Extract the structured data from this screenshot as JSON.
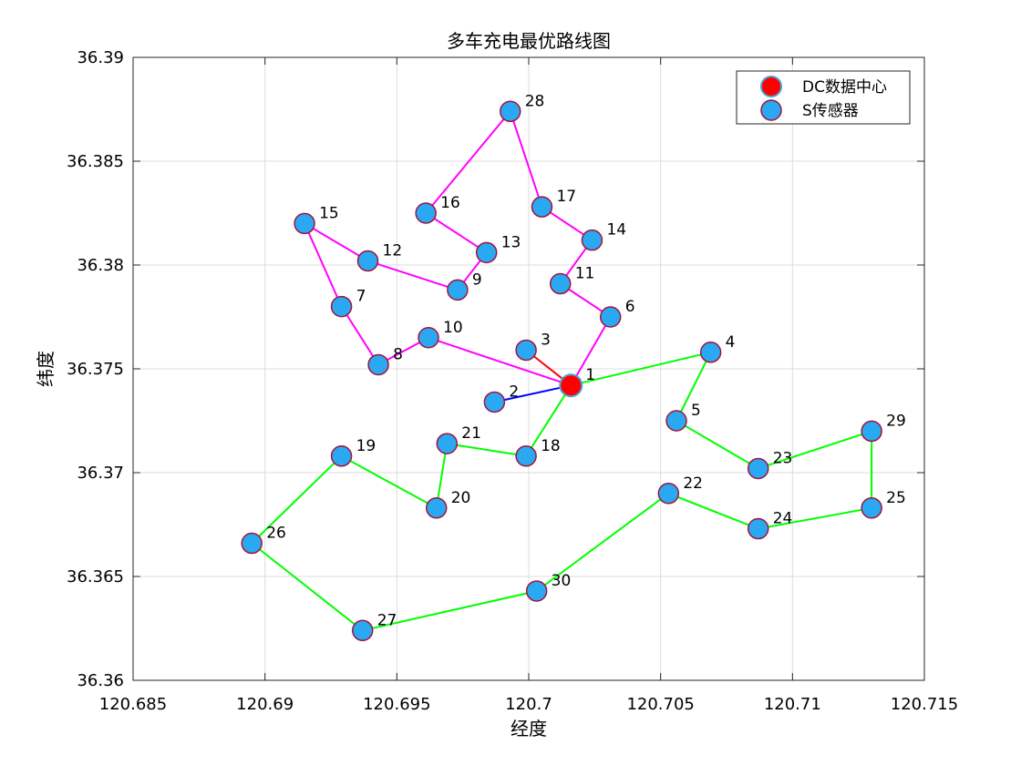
{
  "chart_data": {
    "type": "scatter",
    "title": "多车充电最优路线图",
    "xlabel": "经度",
    "ylabel": "纬度",
    "xlim": [
      120.685,
      120.715
    ],
    "ylim": [
      36.36,
      36.39
    ],
    "xticks": [
      120.685,
      120.69,
      120.695,
      120.7,
      120.705,
      120.71,
      120.715
    ],
    "xtick_labels": [
      "120.685",
      "120.69",
      "120.695",
      "120.7",
      "120.705",
      "120.71",
      "120.715"
    ],
    "yticks": [
      36.36,
      36.365,
      36.37,
      36.375,
      36.38,
      36.385,
      36.39
    ],
    "ytick_labels": [
      "36.36",
      "36.365",
      "36.37",
      "36.375",
      "36.38",
      "36.385",
      "36.39"
    ],
    "grid": true,
    "legend_position": "top-right",
    "legend": [
      {
        "label": "DC数据中心",
        "color": "#ff0000"
      },
      {
        "label": "S传感器",
        "color": "#2aa8f2"
      }
    ],
    "points": [
      {
        "id": "1",
        "x": 120.7016,
        "y": 36.3742,
        "type": "DC"
      },
      {
        "id": "2",
        "x": 120.6987,
        "y": 36.3734,
        "type": "S"
      },
      {
        "id": "3",
        "x": 120.6999,
        "y": 36.3759,
        "type": "S"
      },
      {
        "id": "4",
        "x": 120.7069,
        "y": 36.3758,
        "type": "S"
      },
      {
        "id": "5",
        "x": 120.7056,
        "y": 36.3725,
        "type": "S"
      },
      {
        "id": "6",
        "x": 120.7031,
        "y": 36.3775,
        "type": "S"
      },
      {
        "id": "7",
        "x": 120.6929,
        "y": 36.378,
        "type": "S"
      },
      {
        "id": "8",
        "x": 120.6943,
        "y": 36.3752,
        "type": "S"
      },
      {
        "id": "9",
        "x": 120.6973,
        "y": 36.3788,
        "type": "S"
      },
      {
        "id": "10",
        "x": 120.6962,
        "y": 36.3765,
        "type": "S"
      },
      {
        "id": "11",
        "x": 120.7012,
        "y": 36.3791,
        "type": "S"
      },
      {
        "id": "12",
        "x": 120.6939,
        "y": 36.3802,
        "type": "S"
      },
      {
        "id": "13",
        "x": 120.6984,
        "y": 36.3806,
        "type": "S"
      },
      {
        "id": "14",
        "x": 120.7024,
        "y": 36.3812,
        "type": "S"
      },
      {
        "id": "15",
        "x": 120.6915,
        "y": 36.382,
        "type": "S"
      },
      {
        "id": "16",
        "x": 120.6961,
        "y": 36.3825,
        "type": "S"
      },
      {
        "id": "17",
        "x": 120.7005,
        "y": 36.3828,
        "type": "S"
      },
      {
        "id": "18",
        "x": 120.6999,
        "y": 36.3708,
        "type": "S"
      },
      {
        "id": "19",
        "x": 120.6929,
        "y": 36.3708,
        "type": "S"
      },
      {
        "id": "20",
        "x": 120.6965,
        "y": 36.3683,
        "type": "S"
      },
      {
        "id": "21",
        "x": 120.6969,
        "y": 36.3714,
        "type": "S"
      },
      {
        "id": "22",
        "x": 120.7053,
        "y": 36.369,
        "type": "S"
      },
      {
        "id": "23",
        "x": 120.7087,
        "y": 36.3702,
        "type": "S"
      },
      {
        "id": "24",
        "x": 120.7087,
        "y": 36.3673,
        "type": "S"
      },
      {
        "id": "25",
        "x": 120.713,
        "y": 36.3683,
        "type": "S"
      },
      {
        "id": "26",
        "x": 120.6895,
        "y": 36.3666,
        "type": "S"
      },
      {
        "id": "27",
        "x": 120.6937,
        "y": 36.3624,
        "type": "S"
      },
      {
        "id": "28",
        "x": 120.6993,
        "y": 36.3874,
        "type": "S"
      },
      {
        "id": "29",
        "x": 120.713,
        "y": 36.372,
        "type": "S"
      },
      {
        "id": "30",
        "x": 120.7003,
        "y": 36.3643,
        "type": "S"
      }
    ],
    "routes": [
      {
        "color": "#ff0000",
        "nodes": [
          "1",
          "3"
        ]
      },
      {
        "color": "#0000ff",
        "nodes": [
          "1",
          "2"
        ]
      },
      {
        "color": "#ff00ff",
        "nodes": [
          "1",
          "6",
          "11",
          "14",
          "17",
          "28",
          "16",
          "13",
          "9",
          "12",
          "15",
          "7",
          "8",
          "10",
          "1"
        ]
      },
      {
        "color": "#00ff00",
        "nodes": [
          "1",
          "4",
          "5",
          "23",
          "29",
          "25",
          "24",
          "22",
          "30",
          "27",
          "26",
          "19",
          "20",
          "21",
          "18",
          "1"
        ]
      }
    ]
  }
}
